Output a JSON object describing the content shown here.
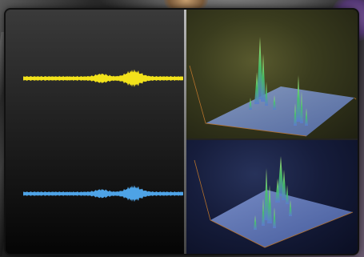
{
  "left_panel": {
    "title": "",
    "y_ticks": [
      "",
      "",
      "",
      "",
      "",
      "",
      "",
      "",
      "",
      "",
      "",
      "",
      "",
      "",
      "",
      "",
      "",
      "",
      "",
      "",
      "",
      "",
      "",
      "",
      "",
      "",
      "",
      "",
      "",
      "",
      "",
      "",
      "",
      "",
      "",
      ""
    ],
    "footer": "",
    "colors": {
      "channel_1": "#f2e21b",
      "channel_2": "#4ea3e6"
    }
  },
  "spectrum_top": {
    "title_line1": "",
    "title_line2": "",
    "axis_label": ""
  },
  "spectrum_bottom": {
    "title_line1": "",
    "title_line2": "",
    "axis_label": ""
  }
}
